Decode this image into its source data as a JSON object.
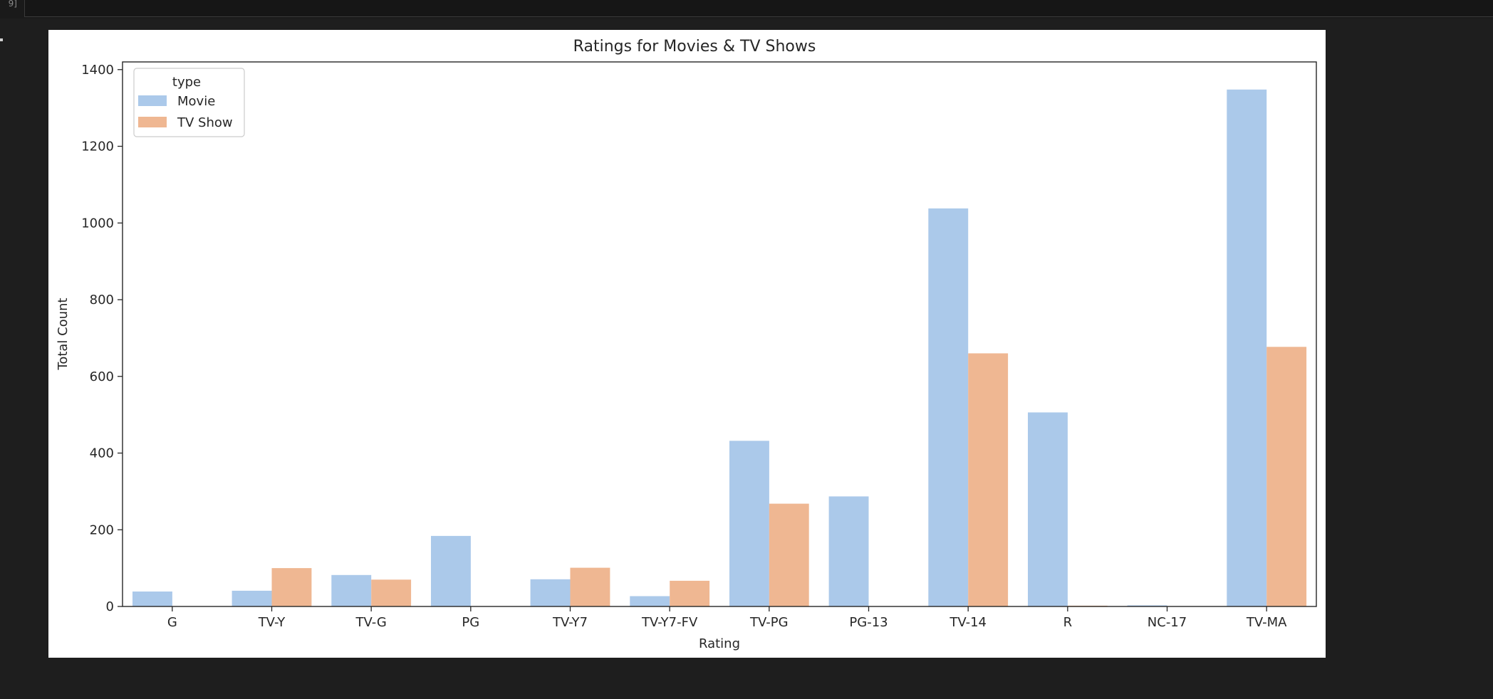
{
  "cell": {
    "execution_count": "9]"
  },
  "chart_data": {
    "type": "bar",
    "title": "Ratings for Movies & TV Shows",
    "xlabel": "Rating",
    "ylabel": "Total Count",
    "categories": [
      "G",
      "TV-Y",
      "TV-G",
      "PG",
      "TV-Y7",
      "TV-Y7-FV",
      "TV-PG",
      "PG-13",
      "TV-14",
      "R",
      "NC-17",
      "TV-MA"
    ],
    "series": [
      {
        "name": "Movie",
        "color": "#abc9ea",
        "values": [
          39,
          41,
          82,
          184,
          71,
          27,
          432,
          287,
          1038,
          506,
          3,
          1348
        ]
      },
      {
        "name": "TV Show",
        "color": "#efb792",
        "values": [
          null,
          100,
          70,
          null,
          101,
          67,
          268,
          null,
          660,
          2,
          null,
          677
        ]
      }
    ],
    "ylim": [
      0,
      1420
    ],
    "yticks": [
      0,
      200,
      400,
      600,
      800,
      1000,
      1200,
      1400
    ],
    "grid": false,
    "legend": {
      "title": "type",
      "placement": "top-left"
    }
  }
}
